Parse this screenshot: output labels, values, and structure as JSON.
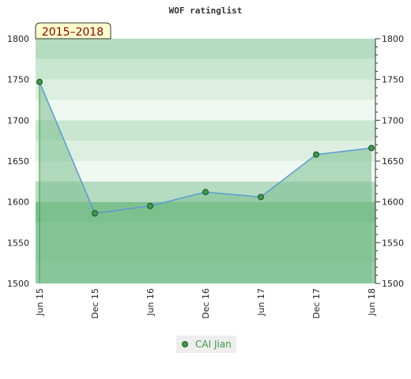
{
  "period_label": "2015–2018",
  "chart_data": {
    "type": "area",
    "title": "WOF ratinglist",
    "xlabel": "",
    "ylabel": "",
    "categories": [
      "Jun 15",
      "Dec 15",
      "Jun 16",
      "Dec 16",
      "Jun 17",
      "Dec 17",
      "Jun 18"
    ],
    "ylim": [
      1500,
      1800
    ],
    "y_ticks": [
      1500,
      1550,
      1600,
      1650,
      1700,
      1750,
      1800
    ],
    "grid": true,
    "legend_position": "bottom",
    "series": [
      {
        "name": "CAI Jian",
        "values": [
          1747,
          1586,
          1595,
          1612,
          1606,
          1658,
          1666
        ],
        "color": "#5b9bd5",
        "marker_color": "#3a9a48"
      }
    ],
    "colors": {
      "band_dark": "#7cc08e",
      "band_light": "#f0f8f2",
      "fill": "#7cc08e",
      "period_bg": "#ffffcc"
    }
  }
}
